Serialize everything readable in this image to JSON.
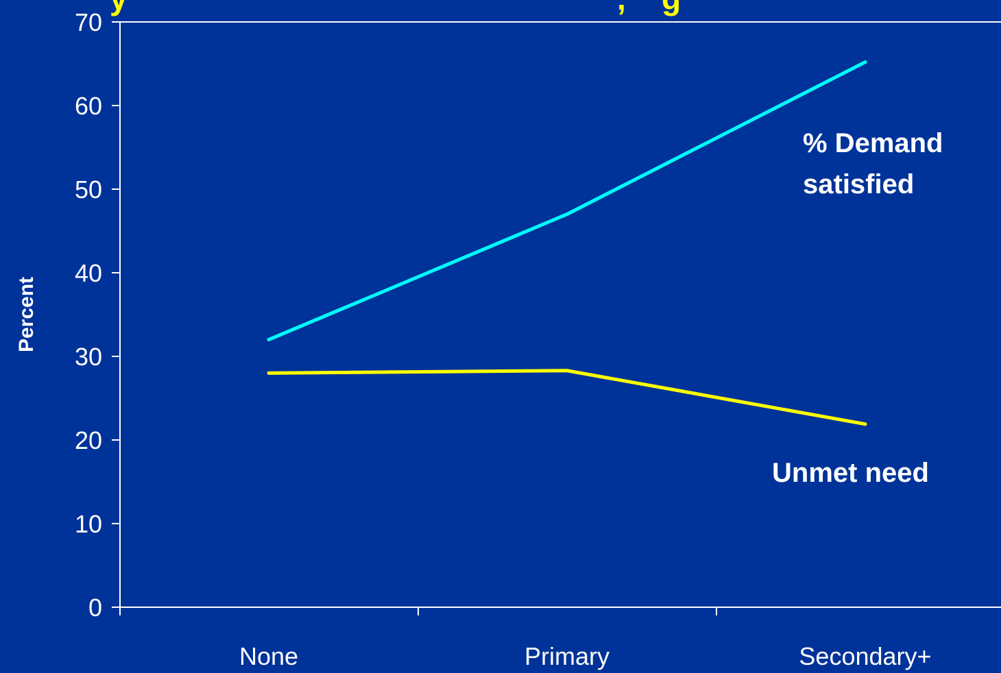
{
  "chart_data": {
    "type": "line",
    "title": "",
    "title_visible_fragment": "y ... , g",
    "xlabel": "",
    "ylabel": "Percent",
    "categories": [
      "None",
      "Primary",
      "Secondary+"
    ],
    "y_ticks": [
      "0",
      "10",
      "20",
      "30",
      "40",
      "50",
      "60",
      "70"
    ],
    "ylim": [
      0,
      70
    ],
    "grid": false,
    "series": [
      {
        "name": "% Demand satisfied",
        "values": [
          32,
          47,
          65.2
        ],
        "color": "#00ffff"
      },
      {
        "name": "Unmet need",
        "values": [
          28,
          28.3,
          21.9
        ],
        "color": "#ffff00"
      }
    ],
    "annotations": {
      "demand_line1": "% Demand",
      "demand_line2": "satisfied",
      "unmet": "Unmet need"
    }
  },
  "colors": {
    "background": "#003399",
    "axis": "#ffffff",
    "text": "#ffffff",
    "title": "#ffff00"
  }
}
